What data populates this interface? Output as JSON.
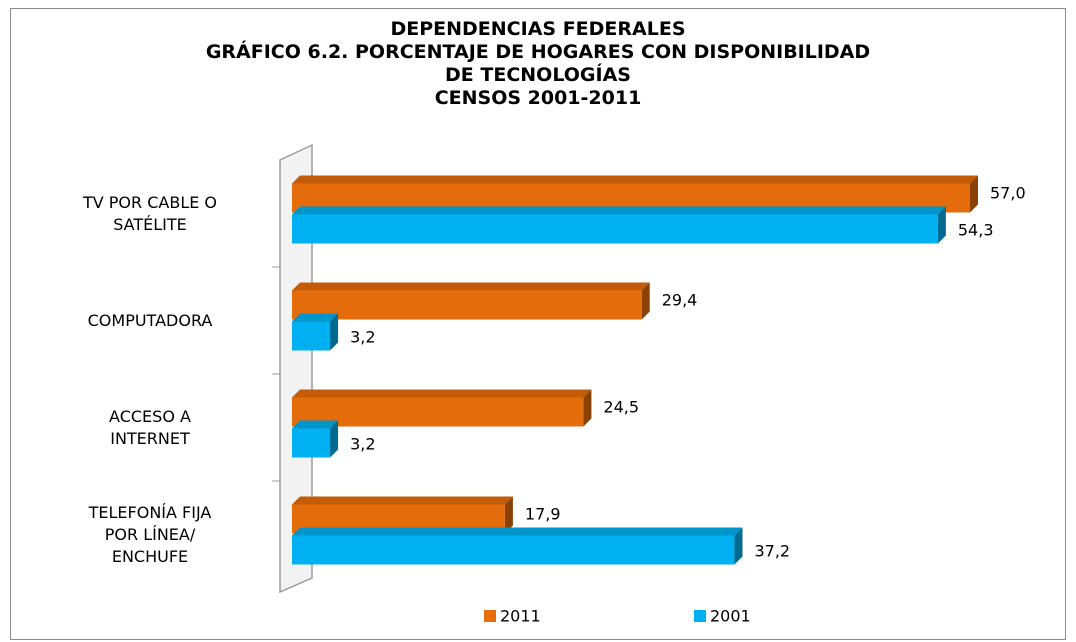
{
  "chart_data": {
    "type": "bar",
    "orientation": "horizontal",
    "title": "DEPENDENCIAS FEDERALES\nGRÁFICO 6.2. PORCENTAJE DE HOGARES CON DISPONIBILIDAD\nDE TECNOLOGÍAS\nCENSOS 2001-2011",
    "categories": [
      "TV POR CABLE O\nSATÉLITE",
      "COMPUTADORA",
      "ACCESO A\nINTERNET",
      "TELEFONÍA FIJA\nPOR LÍNEA/\nENCHUFE"
    ],
    "series": [
      {
        "name": "2011",
        "color": "#e46c0a",
        "values": [
          57.0,
          29.4,
          24.5,
          17.9
        ],
        "value_labels": [
          "57,0",
          "29,4",
          "24,5",
          "17,9"
        ]
      },
      {
        "name": "2001",
        "color": "#00b0f0",
        "values": [
          54.3,
          3.2,
          3.2,
          37.2
        ],
        "value_labels": [
          "54,3",
          "3,2",
          "3,2",
          "37,2"
        ]
      }
    ],
    "legend": "bottom"
  }
}
